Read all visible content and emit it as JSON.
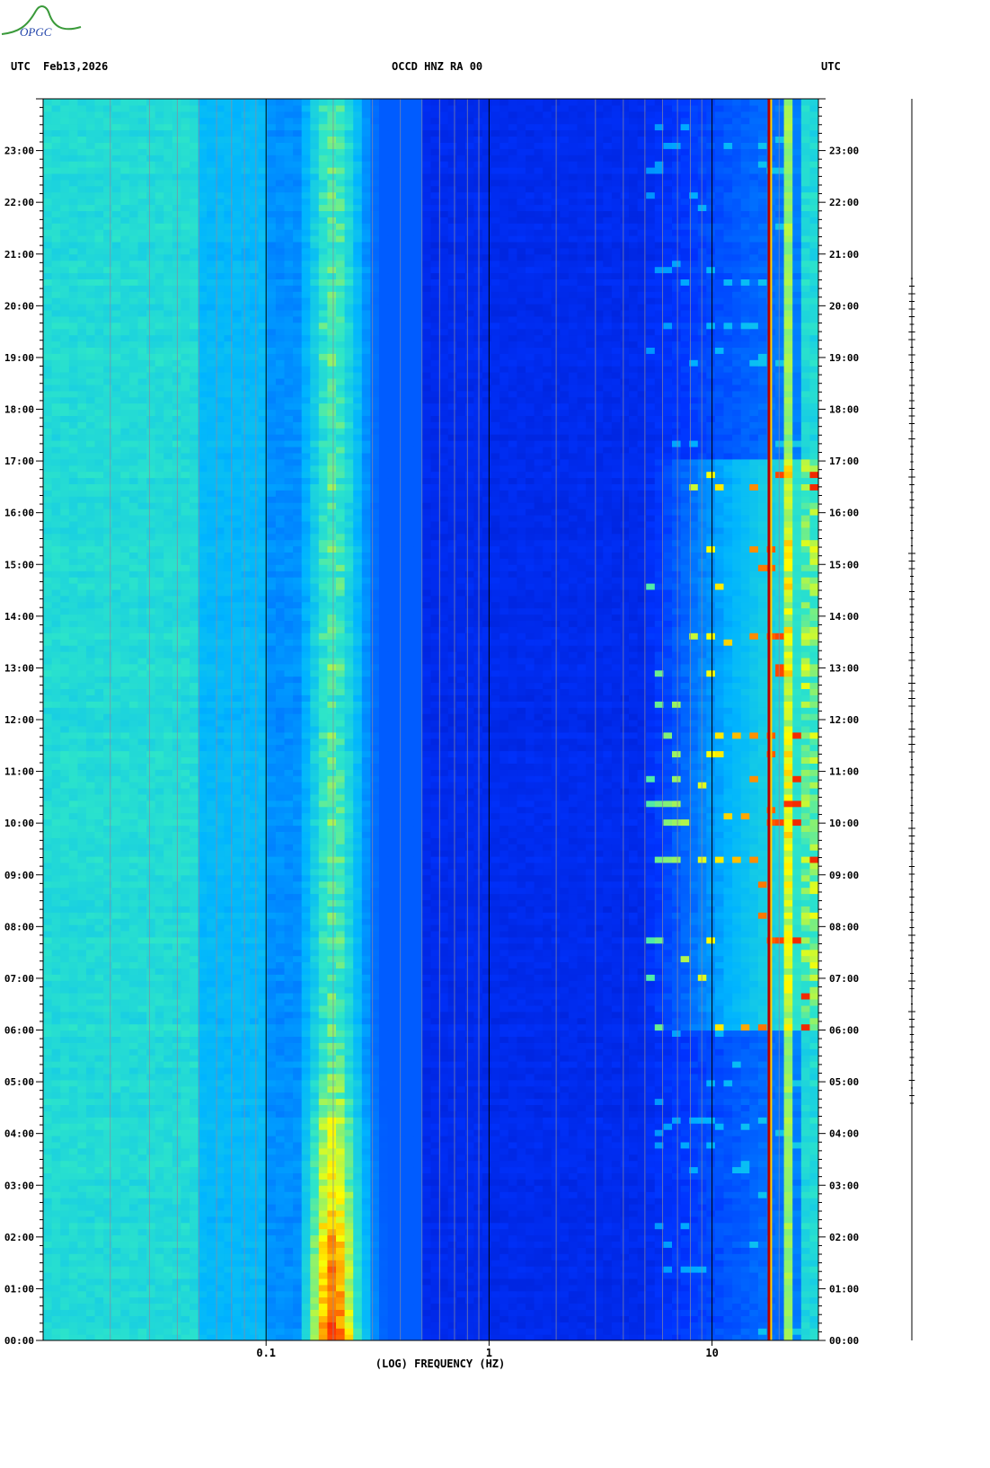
{
  "header": {
    "left_tz": "UTC",
    "date": "Feb13,2026",
    "station": "OCCD HNZ RA 00",
    "right_tz": "UTC"
  },
  "logo": {
    "text": "OPGC"
  },
  "chart_data": {
    "type": "heatmap",
    "title": "OCCD HNZ RA 00",
    "xlabel": "(LOG) FREQUENCY (HZ)",
    "ylabel": "UTC",
    "x_scale": "log",
    "xlim": [
      0.01,
      30
    ],
    "x_ticks": [
      0.1,
      1,
      10
    ],
    "x_tick_labels": [
      "0.1",
      "1",
      "10"
    ],
    "ylim": [
      "00:00",
      "24:00"
    ],
    "y_tick_labels": [
      "00:00",
      "01:00",
      "02:00",
      "03:00",
      "04:00",
      "05:00",
      "06:00",
      "07:00",
      "08:00",
      "09:00",
      "10:00",
      "11:00",
      "12:00",
      "13:00",
      "14:00",
      "15:00",
      "16:00",
      "17:00",
      "18:00",
      "19:00",
      "20:00",
      "21:00",
      "22:00",
      "23:00"
    ],
    "colormap": [
      "#00008b",
      "#0033ff",
      "#00b4ff",
      "#2ee6c8",
      "#ffff00",
      "#ff3300",
      "#b40000"
    ],
    "features": [
      {
        "name": "microseism band",
        "freq_hz": [
          0.15,
          0.3
        ],
        "peak_hours": [
          0,
          6
        ]
      },
      {
        "name": "cultural noise",
        "freq_hz": [
          5,
          30
        ],
        "active_hours": [
          6,
          17
        ]
      },
      {
        "name": "persistent line",
        "freq_hz": 18
      }
    ]
  }
}
